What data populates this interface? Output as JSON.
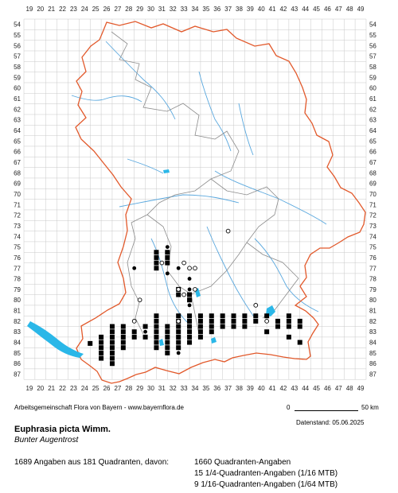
{
  "map": {
    "columns": [
      "19",
      "20",
      "21",
      "22",
      "23",
      "24",
      "25",
      "26",
      "27",
      "28",
      "29",
      "30",
      "31",
      "32",
      "33",
      "34",
      "35",
      "36",
      "37",
      "38",
      "39",
      "40",
      "41",
      "42",
      "43",
      "44",
      "45",
      "46",
      "47",
      "48",
      "49"
    ],
    "rows": [
      "54",
      "55",
      "56",
      "57",
      "58",
      "59",
      "60",
      "61",
      "62",
      "63",
      "64",
      "65",
      "66",
      "67",
      "68",
      "69",
      "70",
      "71",
      "72",
      "73",
      "74",
      "75",
      "76",
      "77",
      "78",
      "79",
      "80",
      "81",
      "82",
      "83",
      "84",
      "85",
      "86",
      "87"
    ],
    "colors": {
      "grid": "#c8c8c8",
      "border": "#e2592b",
      "districts": "#8c8c8c",
      "rivers": "#5aa8de",
      "lakes": "#2ab7e8",
      "marker": "#000000"
    },
    "occurrences": [
      [
        25,
        84.6
      ],
      [
        26,
        84
      ],
      [
        26,
        84.5
      ],
      [
        26,
        85
      ],
      [
        26,
        85.5
      ],
      [
        26,
        86
      ],
      [
        27,
        83
      ],
      [
        27,
        83.5
      ],
      [
        27,
        84
      ],
      [
        27,
        84.5
      ],
      [
        27,
        85
      ],
      [
        27,
        85.5
      ],
      [
        27,
        86
      ],
      [
        27,
        86.5
      ],
      [
        28,
        83
      ],
      [
        28,
        83.5
      ],
      [
        28,
        84
      ],
      [
        28,
        84.5
      ],
      [
        28,
        85
      ],
      [
        29,
        83.5
      ],
      [
        29,
        84
      ],
      [
        30,
        83
      ],
      [
        30,
        84
      ],
      [
        31,
        76
      ],
      [
        31,
        76.5
      ],
      [
        31,
        77
      ],
      [
        31,
        77.5
      ],
      [
        31,
        82
      ],
      [
        31,
        82.5
      ],
      [
        31,
        83
      ],
      [
        31,
        83.5
      ],
      [
        31,
        84
      ],
      [
        31,
        84.5
      ],
      [
        31,
        85
      ],
      [
        32,
        76
      ],
      [
        32,
        76.5
      ],
      [
        32,
        77
      ],
      [
        32,
        83
      ],
      [
        32,
        83.5
      ],
      [
        32,
        84
      ],
      [
        32,
        84.5
      ],
      [
        32,
        85
      ],
      [
        32,
        85.5
      ],
      [
        33,
        79.5
      ],
      [
        33,
        80
      ],
      [
        33,
        82
      ],
      [
        33,
        82.5
      ],
      [
        33,
        83
      ],
      [
        33,
        83.5
      ],
      [
        33,
        84
      ],
      [
        33,
        84.5
      ],
      [
        33,
        85
      ],
      [
        34,
        80
      ],
      [
        34,
        80.5
      ],
      [
        34,
        82
      ],
      [
        34,
        82.5
      ],
      [
        34,
        83
      ],
      [
        34,
        83.5
      ],
      [
        34,
        84
      ],
      [
        34,
        84.5
      ],
      [
        35,
        82
      ],
      [
        35,
        82.5
      ],
      [
        35,
        83
      ],
      [
        35,
        83.5
      ],
      [
        35,
        84
      ],
      [
        36,
        82
      ],
      [
        36,
        82.5
      ],
      [
        36,
        83
      ],
      [
        36,
        83.5
      ],
      [
        37,
        82
      ],
      [
        37,
        82.5
      ],
      [
        37,
        83
      ],
      [
        38,
        82
      ],
      [
        38,
        82.5
      ],
      [
        38,
        83
      ],
      [
        39,
        82
      ],
      [
        39,
        82.5
      ],
      [
        39,
        83
      ],
      [
        40,
        82
      ],
      [
        40,
        82.5
      ],
      [
        41,
        82
      ],
      [
        41,
        83.5
      ],
      [
        42,
        82.5
      ],
      [
        42,
        83
      ],
      [
        43,
        82
      ],
      [
        43,
        82.5
      ],
      [
        43,
        83
      ],
      [
        43,
        84
      ],
      [
        44,
        82.5
      ],
      [
        44,
        83
      ],
      [
        44,
        84.5
      ]
    ],
    "dots": [
      [
        32,
        75.5
      ],
      [
        29,
        77.5
      ],
      [
        33,
        77.5
      ],
      [
        32,
        78
      ],
      [
        34,
        78.5
      ],
      [
        34,
        79.5
      ],
      [
        34,
        81
      ],
      [
        30,
        83.5
      ],
      [
        33,
        85.5
      ]
    ],
    "circles": [
      [
        37.5,
        74
      ],
      [
        31.5,
        77
      ],
      [
        33.5,
        77
      ],
      [
        34,
        77.5
      ],
      [
        34.5,
        77.5
      ],
      [
        33,
        79.5
      ],
      [
        34.5,
        79.5
      ],
      [
        33.5,
        80
      ],
      [
        29.5,
        80.5
      ],
      [
        29,
        82.5
      ],
      [
        33,
        82.5
      ],
      [
        40,
        81
      ],
      [
        41,
        82.5
      ]
    ]
  },
  "credit": "Arbeitsgemeinschaft Flora von Bayern - www.bayernflora.de",
  "scale": {
    "zero": "0",
    "label": "50 km"
  },
  "date": "Datenstand: 05.06.2025",
  "title": "Euphrasia picta Wimm.",
  "subtitle": "Bunter Augentrost",
  "summary": "1689 Angaben aus 181 Quadranten, davon:",
  "counts": [
    "1660 Quadranten-Angaben",
    "15 1/4-Quadranten-Angaben (1/16 MTB)",
    "9 1/16-Quadranten-Angaben (1/64 MTB)"
  ]
}
